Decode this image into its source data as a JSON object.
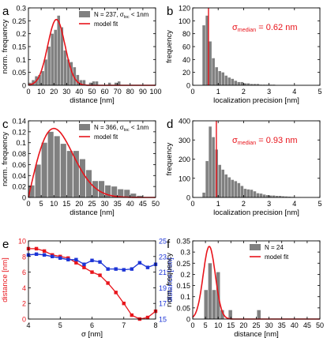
{
  "figure": {
    "colors": {
      "bar": "#808080",
      "fit": "#e8141b",
      "red_series": "#e8141b",
      "blue_series": "#1c34d6",
      "median_line": "#e8141b"
    }
  },
  "chart_data": [
    {
      "id": "a",
      "panel_label": "a",
      "type": "bar",
      "xlabel": "distance [nm]",
      "ylabel": "norm. frequency",
      "xlim": [
        0,
        100
      ],
      "ylim": [
        0,
        0.3
      ],
      "xticks": [
        "0",
        "10",
        "20",
        "30",
        "40",
        "50",
        "60",
        "70",
        "80",
        "90",
        "100"
      ],
      "yticks": [
        "0",
        "0.05",
        "0.1",
        "0.15",
        "0.2",
        "0.25",
        "0.3"
      ],
      "bin_width": 2.5,
      "bin_centers": [
        1.25,
        3.75,
        6.25,
        8.75,
        11.25,
        13.75,
        16.25,
        18.75,
        21.25,
        23.75,
        26.25,
        28.75,
        31.25,
        33.75,
        36.25,
        38.75,
        41.25,
        43.75,
        46.25,
        48.75,
        51.25,
        53.75,
        56.25,
        58.75,
        61.25,
        63.75,
        66.25,
        68.75,
        71.25
      ],
      "values": [
        0.01,
        0.02,
        0.035,
        0.04,
        0.055,
        0.1,
        0.15,
        0.2,
        0.215,
        0.27,
        0.225,
        0.135,
        0.1,
        0.09,
        0.07,
        0.04,
        0.02,
        0.02,
        0.0,
        0.01,
        0.015,
        0.015,
        0.0,
        0.0,
        0.0,
        0.01,
        0.0,
        0.01,
        0.015
      ],
      "fit": {
        "mu": 22,
        "sigma": 6.8,
        "amp": 0.255
      },
      "legend": {
        "entries": [
          "N = 237, σloc < 1nm",
          "model fit"
        ],
        "position": "top-right"
      }
    },
    {
      "id": "b",
      "panel_label": "b",
      "type": "bar",
      "xlabel": "localization precision [nm]",
      "ylabel": "frequency",
      "xlim": [
        0,
        5
      ],
      "ylim": [
        0,
        120
      ],
      "xticks": [
        "0",
        "1",
        "2",
        "3",
        "4",
        "5"
      ],
      "yticks": [
        "0",
        "20",
        "40",
        "60",
        "80",
        "100",
        "120"
      ],
      "bin_width": 0.125,
      "bin_centers": [
        0.4375,
        0.5625,
        0.6875,
        0.8125,
        0.9375,
        1.0625,
        1.1875,
        1.3125,
        1.4375,
        1.5625,
        1.6875,
        1.8125,
        1.9375,
        2.0625,
        2.1875,
        2.3125,
        2.4375,
        2.5625,
        2.6875,
        2.8125,
        2.9375,
        3.0625,
        3.1875
      ],
      "values": [
        93,
        108,
        68,
        42,
        28,
        22,
        20,
        15,
        12,
        10,
        7,
        5,
        5,
        3,
        3,
        2,
        2,
        2,
        1,
        1,
        1,
        1,
        1
      ],
      "median": {
        "value": 0.62,
        "label": "σmedian = 0.62 nm"
      }
    },
    {
      "id": "c",
      "panel_label": "c",
      "type": "bar",
      "xlabel": "distance [nm]",
      "ylabel": "norm. frequency",
      "xlim": [
        0,
        50
      ],
      "ylim": [
        0,
        0.14
      ],
      "xticks": [
        "0",
        "5",
        "10",
        "15",
        "20",
        "25",
        "30",
        "35",
        "40",
        "45",
        "50"
      ],
      "yticks": [
        "0",
        "0.02",
        "0.04",
        "0.06",
        "0.08",
        "0.1",
        "0.12",
        "0.14"
      ],
      "bin_width": 2.5,
      "bin_centers": [
        1.25,
        3.75,
        6.25,
        8.75,
        11.25,
        13.75,
        16.25,
        18.75,
        21.25,
        23.75,
        26.25,
        28.75,
        31.25,
        33.75,
        36.25,
        38.75,
        41.25,
        43.75
      ],
      "values": [
        0.022,
        0.06,
        0.1,
        0.12,
        0.112,
        0.098,
        0.085,
        0.085,
        0.07,
        0.05,
        0.03,
        0.03,
        0.022,
        0.02,
        0.015,
        0.014,
        0.007,
        0.003
      ],
      "fit": {
        "mode": 10,
        "scale": 7.5,
        "amp": 0.126
      },
      "legend": {
        "entries": [
          "N = 366, σloc < 1nm",
          "model fit"
        ],
        "position": "top-right"
      }
    },
    {
      "id": "d",
      "panel_label": "d",
      "type": "bar",
      "xlabel": "localization precision [nm]",
      "ylabel": "frequency",
      "xlim": [
        0,
        5
      ],
      "ylim": [
        0,
        400
      ],
      "xticks": [
        "0",
        "1",
        "2",
        "3",
        "4",
        "5"
      ],
      "yticks": [
        "0",
        "100",
        "200",
        "300",
        "400"
      ],
      "bin_width": 0.125,
      "bin_centers": [
        0.4375,
        0.5625,
        0.6875,
        0.8125,
        0.9375,
        1.0625,
        1.1875,
        1.3125,
        1.4375,
        1.5625,
        1.6875,
        1.8125,
        1.9375,
        2.0625,
        2.1875,
        2.3125,
        2.4375,
        2.5625,
        2.6875,
        2.8125,
        2.9375,
        3.0625,
        3.1875,
        3.3125,
        3.4375,
        3.5625,
        3.6875,
        3.8125,
        3.9375,
        4.0625,
        4.1875
      ],
      "values": [
        25,
        190,
        370,
        315,
        250,
        170,
        145,
        120,
        105,
        92,
        85,
        75,
        60,
        45,
        42,
        40,
        32,
        22,
        20,
        15,
        12,
        10,
        10,
        8,
        8,
        6,
        5,
        4,
        3,
        2,
        2
      ],
      "median": {
        "value": 0.93,
        "label": "σmedian = 0.93 nm"
      }
    },
    {
      "id": "e",
      "panel_label": "e",
      "type": "line",
      "xlabel": "σ [nm]",
      "ylabel_left": "distance [nm]",
      "ylabel_right": "distance [nm]",
      "xlim": [
        4,
        8
      ],
      "ylim_left": [
        0,
        10
      ],
      "ylim_right": [
        15,
        25
      ],
      "xticks": [
        "4",
        "5",
        "6",
        "7",
        "8"
      ],
      "yticks_left": [
        "0",
        "2",
        "4",
        "6",
        "8",
        "10"
      ],
      "yticks_right": [
        "15",
        "17",
        "19",
        "21",
        "23",
        "25"
      ],
      "x": [
        4.0,
        4.25,
        4.5,
        4.75,
        5.0,
        5.25,
        5.5,
        5.75,
        6.0,
        6.25,
        6.5,
        6.75,
        7.0,
        7.25,
        7.5,
        7.75,
        8.0
      ],
      "series": [
        {
          "axis": "left",
          "values": [
            9.0,
            9.0,
            8.7,
            8.2,
            8.0,
            7.8,
            7.2,
            6.6,
            6.0,
            5.6,
            4.6,
            3.4,
            2.0,
            0.5,
            0.0,
            0.2,
            1.0
          ]
        },
        {
          "axis": "right",
          "values": [
            23.2,
            23.3,
            23.2,
            23.0,
            22.8,
            22.6,
            22.6,
            22.0,
            22.5,
            22.3,
            21.4,
            21.4,
            21.3,
            21.4,
            22.2,
            21.6,
            22.0
          ]
        }
      ]
    },
    {
      "id": "f",
      "panel_label": "f",
      "type": "bar",
      "xlabel": "distance [nm]",
      "ylabel": "norm. frequency",
      "xlim": [
        0,
        50
      ],
      "ylim": [
        0,
        0.35
      ],
      "xticks": [
        "0",
        "5",
        "10",
        "15",
        "20",
        "25",
        "30",
        "35",
        "40",
        "45",
        "50"
      ],
      "yticks": [
        "0",
        "0.05",
        "0.1",
        "0.15",
        "0.2",
        "0.25",
        "0.3",
        "0.35"
      ],
      "bin_width": 1.6,
      "bin_centers": [
        5.2,
        6.8,
        8.4,
        10.0,
        11.6,
        13.2,
        14.8,
        16.4,
        18.0,
        19.6,
        21.2,
        22.8,
        24.4,
        26.0
      ],
      "values": [
        0.13,
        0.25,
        0.13,
        0.21,
        0.04,
        0.0,
        0.04,
        0.0,
        0.0,
        0.0,
        0.0,
        0.0,
        0.0,
        0.04
      ],
      "fit": {
        "mu": 6.5,
        "sigma": 2.4,
        "amp": 0.325
      },
      "legend": {
        "entries": [
          "N = 24",
          "model fit"
        ],
        "position": "top-right"
      }
    }
  ]
}
